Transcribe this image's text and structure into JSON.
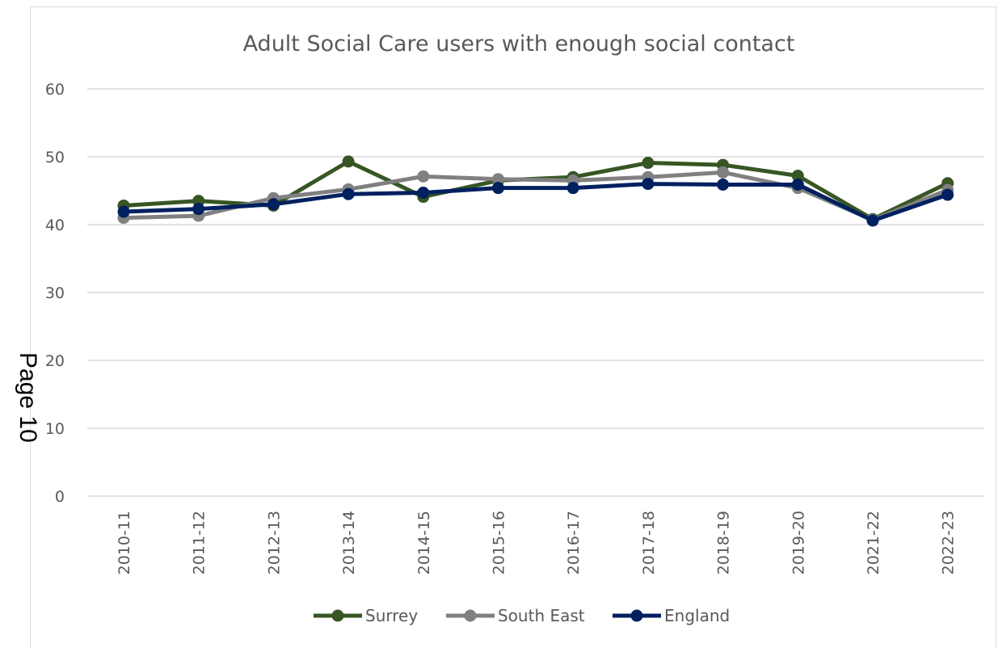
{
  "page_label": "Page 10",
  "chart_data": {
    "type": "line",
    "title": "Adult Social Care users with enough social contact",
    "xlabel": "",
    "ylabel": "",
    "categories": [
      "2010-11",
      "2011-12",
      "2012-13",
      "2013-14",
      "2014-15",
      "2015-16",
      "2016-17",
      "2017-18",
      "2018-19",
      "2019-20",
      "2021-22",
      "2022-23"
    ],
    "ylim": [
      0,
      60
    ],
    "yticks": [
      "0",
      "10",
      "20",
      "30",
      "40",
      "50",
      "60"
    ],
    "grid": true,
    "legend_position": "bottom",
    "series": [
      {
        "name": "Surrey",
        "color": "#375623",
        "values": [
          42.8,
          43.5,
          42.8,
          49.3,
          44.1,
          46.5,
          47.0,
          49.1,
          48.8,
          47.2,
          40.8,
          46.1
        ]
      },
      {
        "name": "South East",
        "color": "#808080",
        "values": [
          41.0,
          41.3,
          43.9,
          45.2,
          47.1,
          46.7,
          46.5,
          47.0,
          47.7,
          45.4,
          40.7,
          45.1
        ]
      },
      {
        "name": "England",
        "color": "#002060",
        "values": [
          41.9,
          42.3,
          43.0,
          44.5,
          44.7,
          45.4,
          45.4,
          46.0,
          45.9,
          45.9,
          40.6,
          44.4
        ]
      }
    ]
  }
}
